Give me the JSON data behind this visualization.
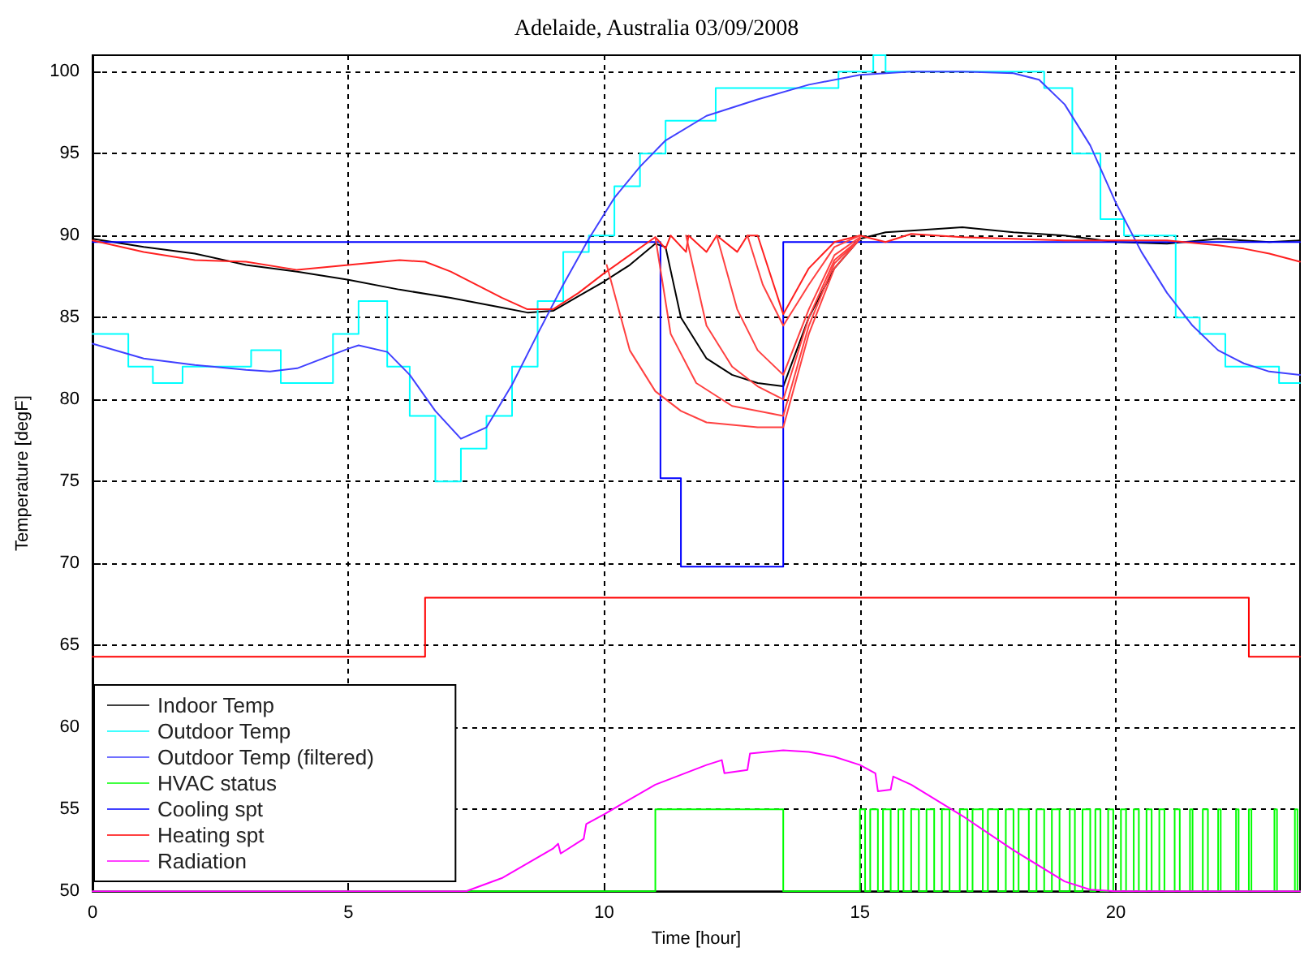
{
  "chart_data": {
    "type": "line",
    "title": "Adelaide, Australia 03/09/2008",
    "xlabel": "Time [hour]",
    "ylabel": "Temperature [degF]",
    "xlim": [
      0,
      23.6
    ],
    "xticks": [
      0,
      5,
      10,
      15,
      20
    ],
    "ylim": [
      50,
      101
    ],
    "yticks": [
      50,
      55,
      60,
      65,
      70,
      75,
      80,
      85,
      90,
      95,
      100
    ],
    "grid": true,
    "legend": "bottom left",
    "marker": "none",
    "line_style": "solid",
    "series": [
      {
        "name": "Indoor Temp",
        "color": "#000000",
        "x": [
          0,
          1,
          2,
          3,
          4,
          5,
          6,
          7,
          8,
          8.5,
          9,
          9.5,
          10,
          10.5,
          11,
          11.2,
          11.5,
          12,
          12.5,
          13,
          13.5,
          14,
          14.5,
          15,
          15.5,
          16,
          17,
          18,
          19,
          20,
          21,
          22,
          23,
          23.6
        ],
        "values": [
          89.8,
          89.3,
          88.9,
          88.2,
          87.8,
          87.3,
          86.7,
          86.2,
          85.6,
          85.3,
          85.4,
          86.3,
          87.2,
          88.2,
          89.5,
          89.3,
          85,
          82.5,
          81.5,
          81,
          80.8,
          85,
          88,
          89.8,
          90.2,
          90.3,
          90.5,
          90.2,
          90,
          89.6,
          89.5,
          89.8,
          89.6,
          89.7
        ]
      },
      {
        "name": "Outdoor Temp",
        "type": "step",
        "color": "#00ffff",
        "x": [
          0,
          0.7,
          1.18,
          1.76,
          3.1,
          3.68,
          4.7,
          5.2,
          5.76,
          6.2,
          6.7,
          7.2,
          7.7,
          8.2,
          8.7,
          9.2,
          9.7,
          10.2,
          10.7,
          11.2,
          12.18,
          14.58,
          15.26,
          15.5,
          18.6,
          19.15,
          19.7,
          20.16,
          21.17,
          21.64,
          22.14,
          23.19,
          23.6
        ],
        "values": [
          84,
          82,
          81,
          82,
          83,
          81,
          84,
          86,
          82,
          79,
          75,
          77,
          79,
          82,
          86,
          89,
          90,
          93,
          95,
          97,
          99,
          100,
          101,
          100,
          99,
          95,
          91,
          90,
          85,
          84,
          82,
          81,
          81
        ]
      },
      {
        "name": "Outdoor Temp (filtered)",
        "color": "#4040ff",
        "x": [
          0,
          1,
          2,
          3,
          3.47,
          4,
          5,
          5.2,
          5.76,
          6.2,
          6.7,
          7.2,
          7.7,
          8.2,
          8.7,
          9.2,
          9.7,
          10.2,
          10.7,
          11.2,
          12,
          13,
          14,
          15,
          16,
          17,
          18,
          18.5,
          19,
          19.5,
          20,
          20.5,
          21,
          21.5,
          22,
          22.5,
          23,
          23.6
        ],
        "values": [
          83.4,
          82.5,
          82.1,
          81.8,
          81.7,
          81.9,
          83.1,
          83.3,
          82.9,
          81.5,
          79.3,
          77.6,
          78.3,
          80.9,
          84,
          87,
          89.8,
          92.3,
          94.2,
          95.8,
          97.3,
          98.3,
          99.2,
          99.8,
          100,
          100,
          99.9,
          99.5,
          98,
          95.5,
          92,
          89,
          86.5,
          84.5,
          83,
          82.2,
          81.7,
          81.5
        ]
      },
      {
        "name": "HVAC status",
        "type": "step",
        "color": "#00ff00",
        "x": [
          0,
          11.0,
          13.5,
          15.0,
          15.1,
          15.2,
          15.35,
          15.45,
          15.6,
          15.75,
          15.85,
          16.0,
          16.15,
          16.3,
          16.45,
          16.6,
          16.75,
          16.95,
          17.1,
          17.2,
          17.4,
          17.5,
          17.7,
          17.85,
          18.0,
          18.1,
          18.3,
          18.45,
          18.6,
          18.75,
          18.9,
          19.1,
          19.2,
          19.35,
          19.5,
          19.6,
          19.7,
          19.85,
          19.95,
          20.1,
          20.2,
          20.35,
          20.45,
          20.6,
          20.7,
          20.85,
          20.95,
          21.15,
          21.25,
          21.45,
          21.5,
          21.7,
          21.8,
          22.0,
          22.05,
          22.35,
          22.4,
          22.6,
          22.65,
          23.1,
          23.15,
          23.5,
          23.55,
          23.6
        ],
        "values": [
          50,
          55,
          50,
          55,
          50,
          55,
          50,
          55,
          50,
          55,
          50,
          55,
          50,
          55,
          50,
          55,
          50,
          55,
          50,
          55,
          50,
          55,
          50,
          55,
          50,
          55,
          50,
          55,
          50,
          55,
          50,
          55,
          50,
          55,
          50,
          55,
          50,
          55,
          50,
          55,
          50,
          55,
          50,
          55,
          50,
          55,
          50,
          55,
          50,
          55,
          50,
          55,
          50,
          55,
          50,
          55,
          50,
          55,
          50,
          55,
          50,
          55,
          50,
          50
        ]
      },
      {
        "name": "Cooling spt",
        "type": "step",
        "color": "#0000ff",
        "x": [
          0,
          11.1,
          11.5,
          13.5,
          23.6
        ],
        "values": [
          89.6,
          75.2,
          69.8,
          89.6,
          89.6
        ]
      },
      {
        "name": "Heating spt",
        "type": "step",
        "color": "#ff0000",
        "x": [
          0,
          6.5,
          22.6,
          23.6
        ],
        "values": [
          64.3,
          67.9,
          64.3,
          64.3
        ]
      },
      {
        "name": "Radiation",
        "color": "#ff00ff",
        "x": [
          0,
          7.3,
          8,
          9,
          9.1,
          9.15,
          9.6,
          9.65,
          10,
          11,
          12,
          12.3,
          12.35,
          12.8,
          12.85,
          13.5,
          14,
          14.5,
          15,
          15.3,
          15.35,
          15.6,
          15.65,
          16,
          17,
          18,
          19,
          19.5,
          20,
          23.6
        ],
        "values": [
          50,
          50,
          50.8,
          52.6,
          52.9,
          52.3,
          53.2,
          54.1,
          54.7,
          56.5,
          57.7,
          58,
          57.2,
          57.4,
          58.4,
          58.6,
          58.5,
          58.2,
          57.7,
          57.2,
          56.1,
          56.2,
          57,
          56.5,
          54.6,
          52.5,
          50.6,
          50.1,
          50,
          50
        ]
      },
      {
        "color": "#ff2020",
        "x": [
          0,
          1,
          2,
          3,
          4,
          5,
          6,
          6.5,
          7,
          8,
          8.5,
          9,
          9.5,
          10,
          10.5,
          11,
          11.2,
          11.3,
          11.6,
          11.65,
          12,
          12.2,
          12.6,
          12.8,
          13.0,
          13.5,
          14,
          14.5,
          15,
          15.5,
          16,
          17,
          18,
          19,
          20,
          21,
          22,
          22.5,
          23,
          23.6
        ],
        "values": [
          89.7,
          89,
          88.5,
          88.4,
          87.9,
          88.2,
          88.5,
          88.4,
          87.8,
          86.2,
          85.5,
          85.5,
          86.5,
          87.7,
          88.8,
          89.9,
          89.2,
          90,
          89,
          90,
          89,
          90,
          89,
          90,
          90,
          85.2,
          88,
          89.6,
          90,
          89.6,
          90.1,
          89.9,
          89.8,
          89.7,
          89.7,
          89.7,
          89.4,
          89.2,
          88.9,
          88.4
        ]
      },
      {
        "color": "#ff4040",
        "x": [
          10.05,
          10.5,
          11,
          11.5,
          12,
          13,
          13.5,
          14,
          14.5,
          15
        ],
        "values": [
          88.2,
          83,
          80.5,
          79.3,
          78.6,
          78.3,
          78.3,
          84,
          88,
          89.8
        ]
      },
      {
        "color": "#ff4040",
        "x": [
          11.0,
          11.3,
          11.8,
          12.5,
          13.5,
          14,
          14.5,
          15
        ],
        "values": [
          89.9,
          84,
          81,
          79.6,
          79,
          84.5,
          88.3,
          89.8
        ]
      },
      {
        "color": "#ff4040",
        "x": [
          11.6,
          12,
          12.5,
          13,
          13.5,
          14,
          14.5,
          15
        ],
        "values": [
          90,
          84.5,
          82,
          80.8,
          80,
          85,
          88.5,
          89.8
        ]
      },
      {
        "color": "#ff4040",
        "x": [
          12.2,
          12.6,
          13,
          13.5,
          14,
          14.5,
          15
        ],
        "values": [
          90,
          85.5,
          83,
          81.5,
          85.5,
          88.8,
          89.9
        ]
      },
      {
        "color": "#ff4040",
        "x": [
          12.8,
          13.1,
          13.5,
          14,
          14.5,
          15
        ],
        "values": [
          90,
          87,
          84.5,
          87,
          89.3,
          90
        ]
      }
    ]
  }
}
